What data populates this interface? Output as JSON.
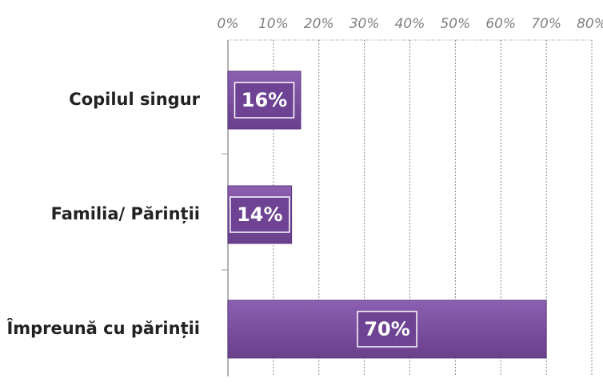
{
  "chart_data": {
    "type": "bar",
    "orientation": "horizontal",
    "categories": [
      "Copilul singur",
      "Familia/ Părinții",
      "Împreună cu părinții"
    ],
    "values": [
      16,
      14,
      70
    ],
    "value_labels": [
      "16%",
      "14%",
      "70%"
    ],
    "color": "#7c4f9e",
    "xlim": [
      0,
      80
    ],
    "xticks": [
      {
        "value": 0,
        "label": "0%"
      },
      {
        "value": 10,
        "label": "10%"
      },
      {
        "value": 20,
        "label": "20%"
      },
      {
        "value": 30,
        "label": "30%"
      },
      {
        "value": 40,
        "label": "40%"
      },
      {
        "value": 50,
        "label": "50%"
      },
      {
        "value": 60,
        "label": "60%"
      },
      {
        "value": 70,
        "label": "70%"
      },
      {
        "value": 80,
        "label": "80%"
      }
    ],
    "grid": true
  }
}
